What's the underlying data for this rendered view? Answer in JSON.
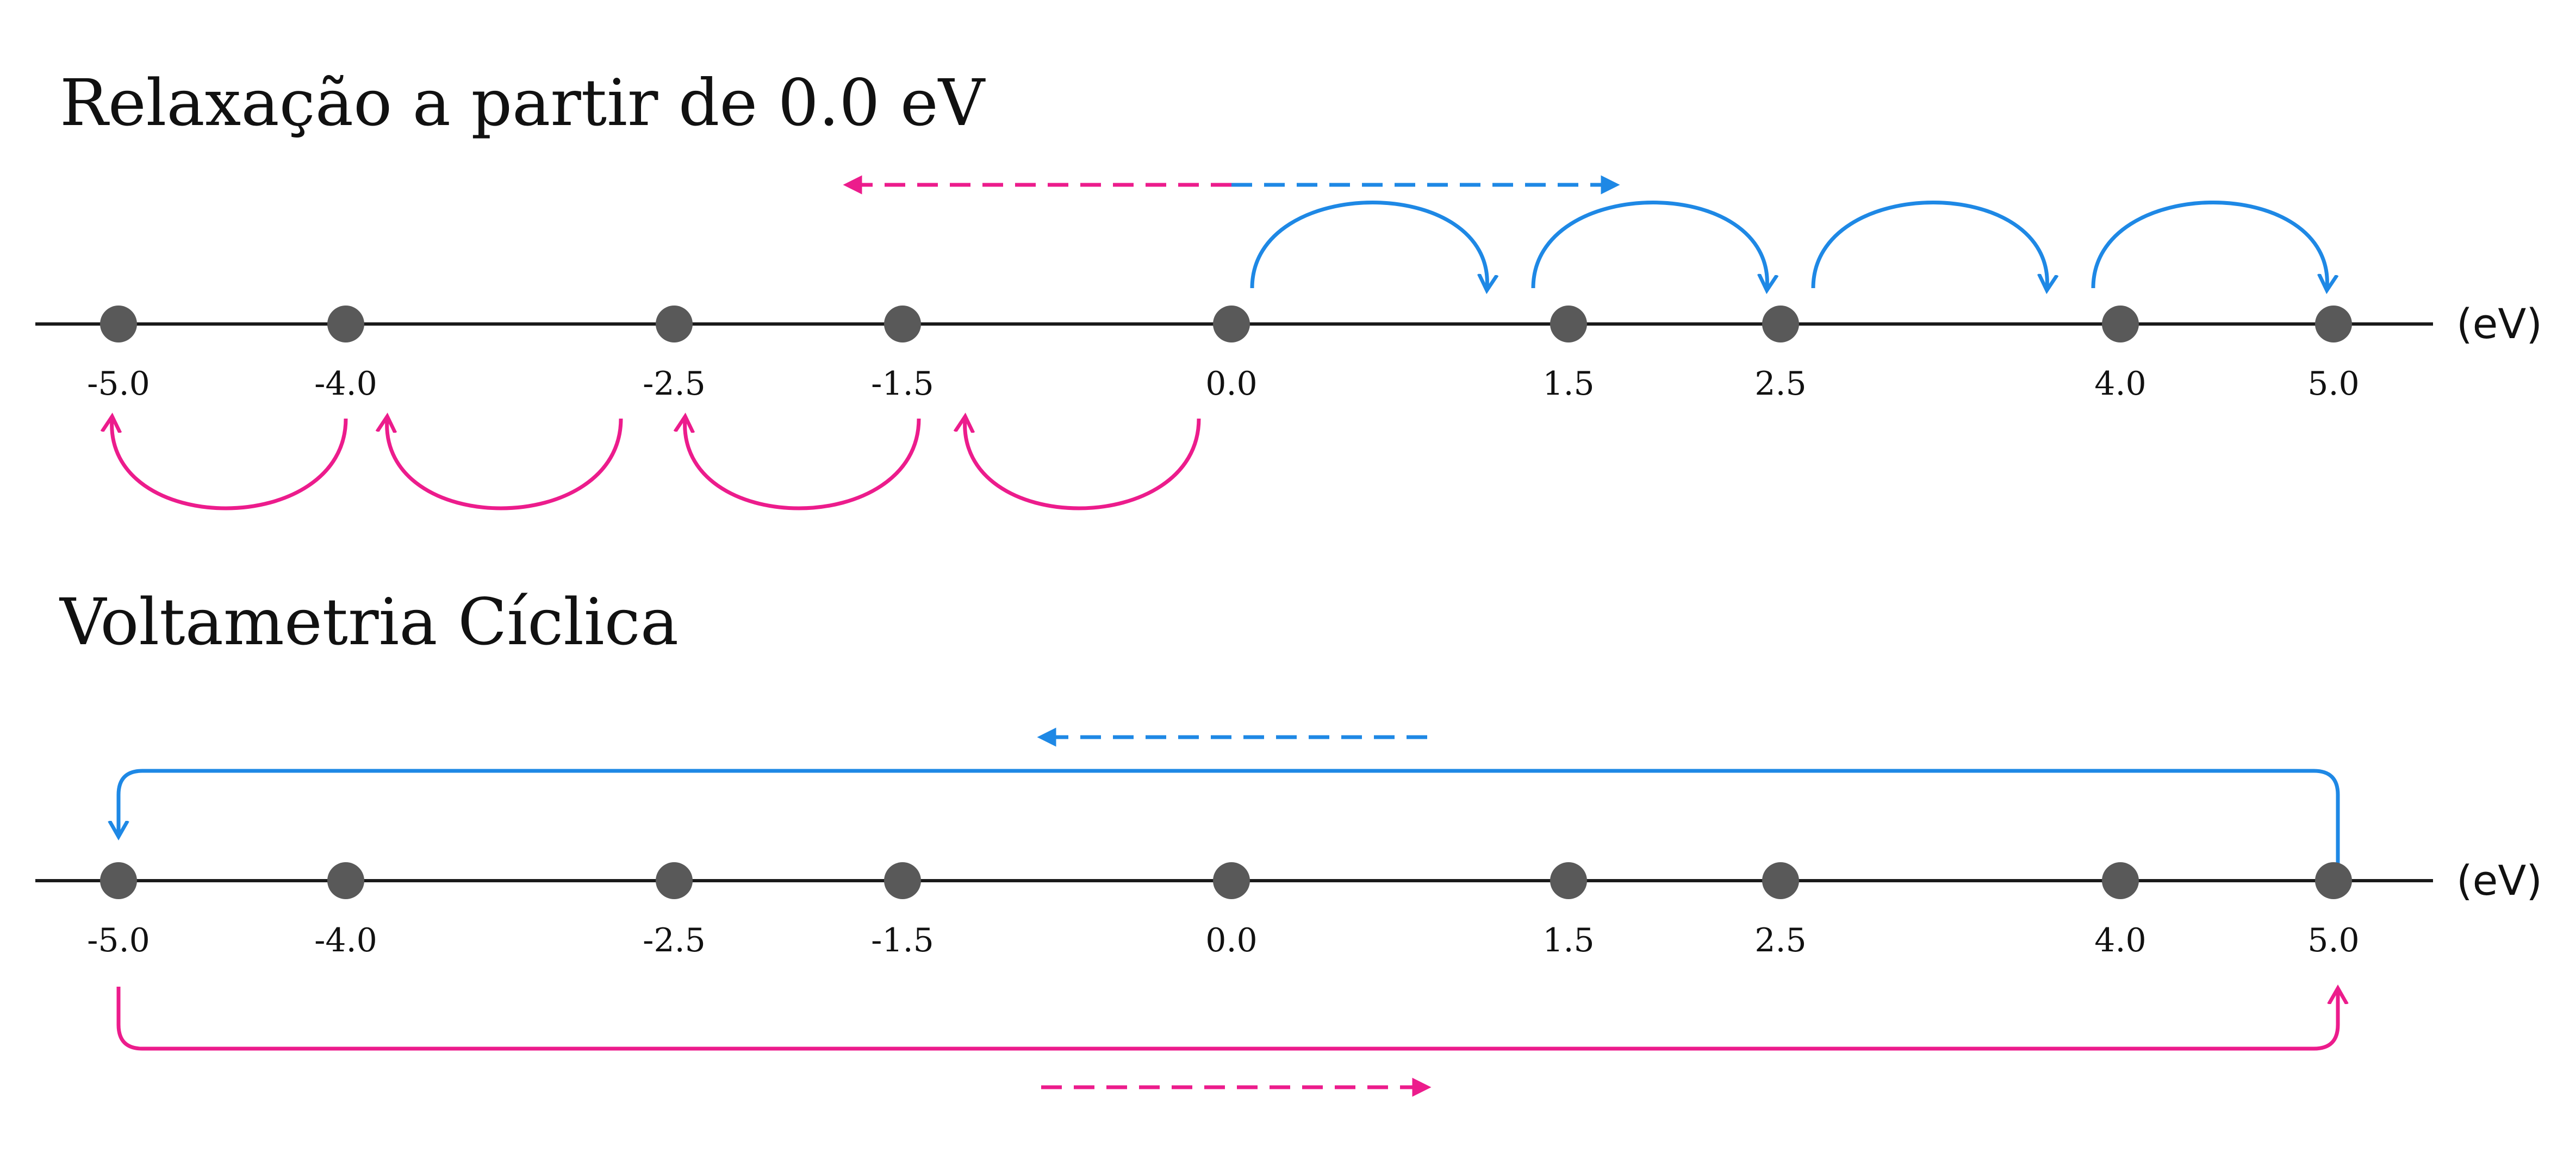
{
  "colors": {
    "axis": "#1a1a1a",
    "point": "#595959",
    "blue": "#1e88e5",
    "pink": "#ec1c8c",
    "text": "#111111"
  },
  "ticks": [
    "-5.0",
    "-4.0",
    "-2.5",
    "-1.5",
    "0.0",
    "1.5",
    "2.5",
    "4.0",
    "5.0"
  ],
  "panels": [
    {
      "id": "relaxation",
      "title": "Relaxação a partir de 0.0 eV",
      "unit": "(eV)",
      "arrow_icons": [
        "dashed-left-arrow-pink",
        "dashed-right-arrow-blue",
        "curved-hop-arrows-blue",
        "curved-hop-arrows-pink"
      ]
    },
    {
      "id": "cyclic",
      "title": "Voltametria Cíclica",
      "unit": "(eV)",
      "arrow_icons": [
        "dashed-left-arrow-blue",
        "loop-arrow-blue",
        "loop-arrow-pink",
        "dashed-right-arrow-pink"
      ]
    }
  ]
}
